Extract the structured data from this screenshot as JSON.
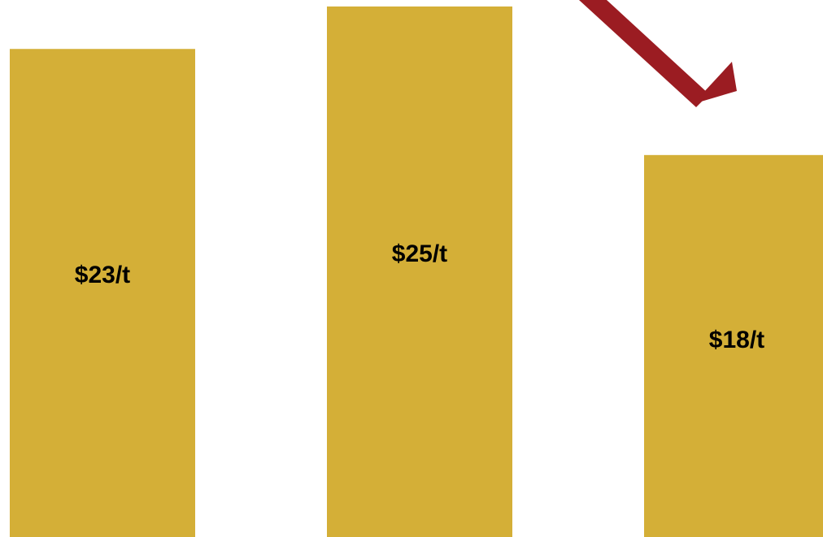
{
  "chart_data": {
    "type": "bar",
    "categories": [
      "",
      "",
      ""
    ],
    "values": [
      23,
      25,
      18
    ],
    "value_labels": [
      "$23/t",
      "$25/t",
      "$18/t"
    ],
    "title": "",
    "xlabel": "",
    "ylabel": "",
    "grid": false,
    "legend": "none",
    "annotations": [
      {
        "kind": "downward-arrow",
        "from_bar": 1,
        "to_bar": 2
      }
    ]
  },
  "colors": {
    "bar": "#D4AF37",
    "arrow": "#9B1C22",
    "label": "#000000"
  }
}
